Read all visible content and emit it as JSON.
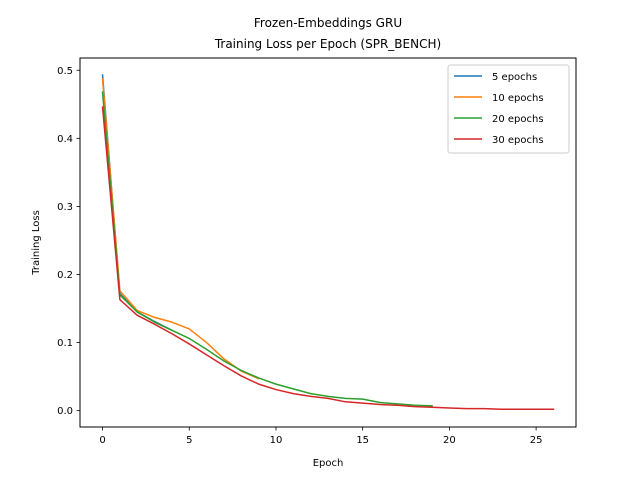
{
  "chart_data": {
    "type": "line",
    "title": "Frozen-Embeddings GRU",
    "subtitle": "Training Loss per Epoch (SPR_BENCH)",
    "xlabel": "Epoch",
    "ylabel": "Training Loss",
    "xlim": [
      -1.3,
      27.3
    ],
    "ylim": [
      -0.024,
      0.518
    ],
    "xticks": [
      0,
      5,
      10,
      15,
      20,
      25
    ],
    "yticks": [
      0.0,
      0.1,
      0.2,
      0.3,
      0.4,
      0.5
    ],
    "yticklabels": [
      "0.0",
      "0.1",
      "0.2",
      "0.3",
      "0.4",
      "0.5"
    ],
    "grid": false,
    "legend_position": "top-right",
    "series": [
      {
        "name": "5 epochs",
        "color": "#1f77b4",
        "x": [
          0,
          1,
          2,
          3,
          4
        ],
        "values": [
          0.493,
          0.172,
          0.145,
          0.131,
          0.118
        ]
      },
      {
        "name": "10 epochs",
        "color": "#ff7f0e",
        "x": [
          0,
          1,
          2,
          3,
          4,
          5,
          6,
          7,
          8,
          9
        ],
        "values": [
          0.487,
          0.176,
          0.147,
          0.137,
          0.13,
          0.12,
          0.1,
          0.076,
          0.058,
          0.047
        ]
      },
      {
        "name": "20 epochs",
        "color": "#2ca02c",
        "x": [
          0,
          1,
          2,
          3,
          4,
          5,
          6,
          7,
          8,
          9,
          10,
          11,
          12,
          13,
          14,
          15,
          16,
          17,
          18,
          19
        ],
        "values": [
          0.468,
          0.17,
          0.145,
          0.13,
          0.118,
          0.106,
          0.09,
          0.073,
          0.059,
          0.048,
          0.039,
          0.032,
          0.025,
          0.021,
          0.018,
          0.017,
          0.012,
          0.01,
          0.008,
          0.007
        ]
      },
      {
        "name": "30 epochs",
        "color": "#d62728",
        "x": [
          0,
          1,
          2,
          3,
          4,
          5,
          6,
          7,
          8,
          9,
          10,
          11,
          12,
          13,
          14,
          15,
          16,
          17,
          18,
          19,
          20,
          21,
          22,
          23,
          24,
          25,
          26
        ],
        "values": [
          0.446,
          0.163,
          0.14,
          0.127,
          0.113,
          0.098,
          0.082,
          0.066,
          0.051,
          0.039,
          0.031,
          0.025,
          0.021,
          0.018,
          0.013,
          0.011,
          0.009,
          0.008,
          0.006,
          0.005,
          0.004,
          0.003,
          0.003,
          0.002,
          0.002,
          0.002,
          0.002
        ]
      }
    ]
  }
}
